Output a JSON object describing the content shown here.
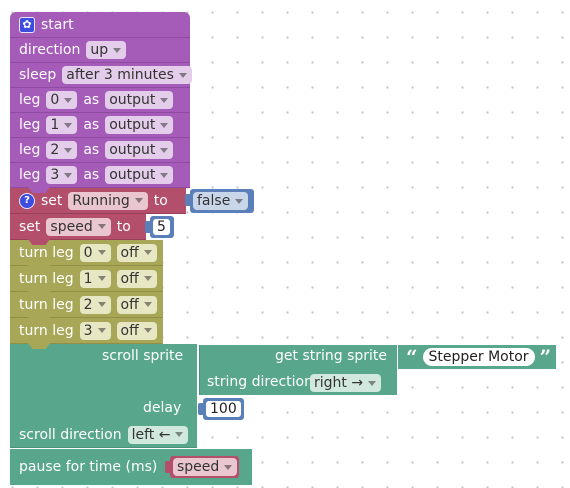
{
  "start": {
    "label": "start",
    "icon": "gear-icon"
  },
  "direction": {
    "label": "direction",
    "value": "up"
  },
  "sleep": {
    "label": "sleep",
    "value": "after 3 minutes"
  },
  "legs": [
    {
      "label": "leg",
      "leg": "0",
      "as_label": "as",
      "mode": "output"
    },
    {
      "label": "leg",
      "leg": "1",
      "as_label": "as",
      "mode": "output"
    },
    {
      "label": "leg",
      "leg": "2",
      "as_label": "as",
      "mode": "output"
    },
    {
      "label": "leg",
      "leg": "3",
      "as_label": "as",
      "mode": "output"
    }
  ],
  "set_running": {
    "icon": "help-icon",
    "set_label": "set",
    "variable": "Running",
    "to_label": "to",
    "value": "false"
  },
  "set_speed": {
    "set_label": "set",
    "variable": "speed",
    "to_label": "to",
    "value": "5"
  },
  "turn_legs": [
    {
      "label": "turn leg",
      "leg": "0",
      "state": "off"
    },
    {
      "label": "turn leg",
      "leg": "1",
      "state": "off"
    },
    {
      "label": "turn leg",
      "leg": "2",
      "state": "off"
    },
    {
      "label": "turn leg",
      "leg": "3",
      "state": "off"
    }
  ],
  "scroll_sprite": {
    "label": "scroll sprite",
    "get_label": "get string sprite",
    "text": "Stepper Motor",
    "string_direction_label": "string direction",
    "string_direction": "right →",
    "delay_label": "delay",
    "delay": "100",
    "scroll_direction_label": "scroll direction",
    "scroll_direction": "left ←"
  },
  "pause": {
    "label": "pause for time (ms)",
    "variable": "speed"
  }
}
